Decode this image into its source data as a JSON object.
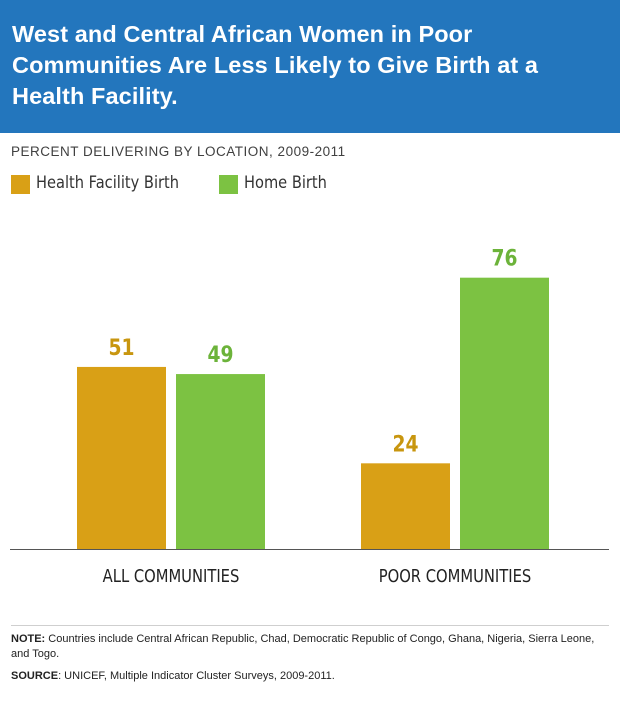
{
  "header": {
    "title": "West and Central African Women in Poor Communities Are Less Likely to Give Birth at a Health Facility."
  },
  "subtitle": "PERCENT DELIVERING BY LOCATION, 2009-2011",
  "legend": [
    {
      "label": "Health Facility Birth",
      "color": "#d9a016"
    },
    {
      "label": "Home Birth",
      "color": "#7cc242"
    }
  ],
  "chart_data": {
    "type": "bar",
    "title": "West and Central African Women in Poor Communities Are Less Likely to Give Birth at a Health Facility.",
    "subtitle": "PERCENT DELIVERING BY LOCATION, 2009-2011",
    "categories": [
      "ALL COMMUNITIES",
      "POOR COMMUNITIES"
    ],
    "series": [
      {
        "name": "Health Facility Birth",
        "values": [
          51,
          24
        ],
        "color": "#d9a016",
        "label_color": "#c8960f"
      },
      {
        "name": "Home Birth",
        "values": [
          49,
          76
        ],
        "color": "#7cc242",
        "label_color": "#6cb33a"
      }
    ],
    "ylim": [
      0,
      100
    ],
    "grid": false,
    "legend_position": "top-left"
  },
  "notes": {
    "note_label": "NOTE:",
    "note_text": " Countries include Central African Republic, Chad, Democratic Republic of Congo, Ghana, Nigeria, Sierra Leone, and Togo.",
    "source_label": "SOURCE",
    "source_text": ": UNICEF, Multiple Indicator Cluster Surveys, 2009-2011."
  }
}
